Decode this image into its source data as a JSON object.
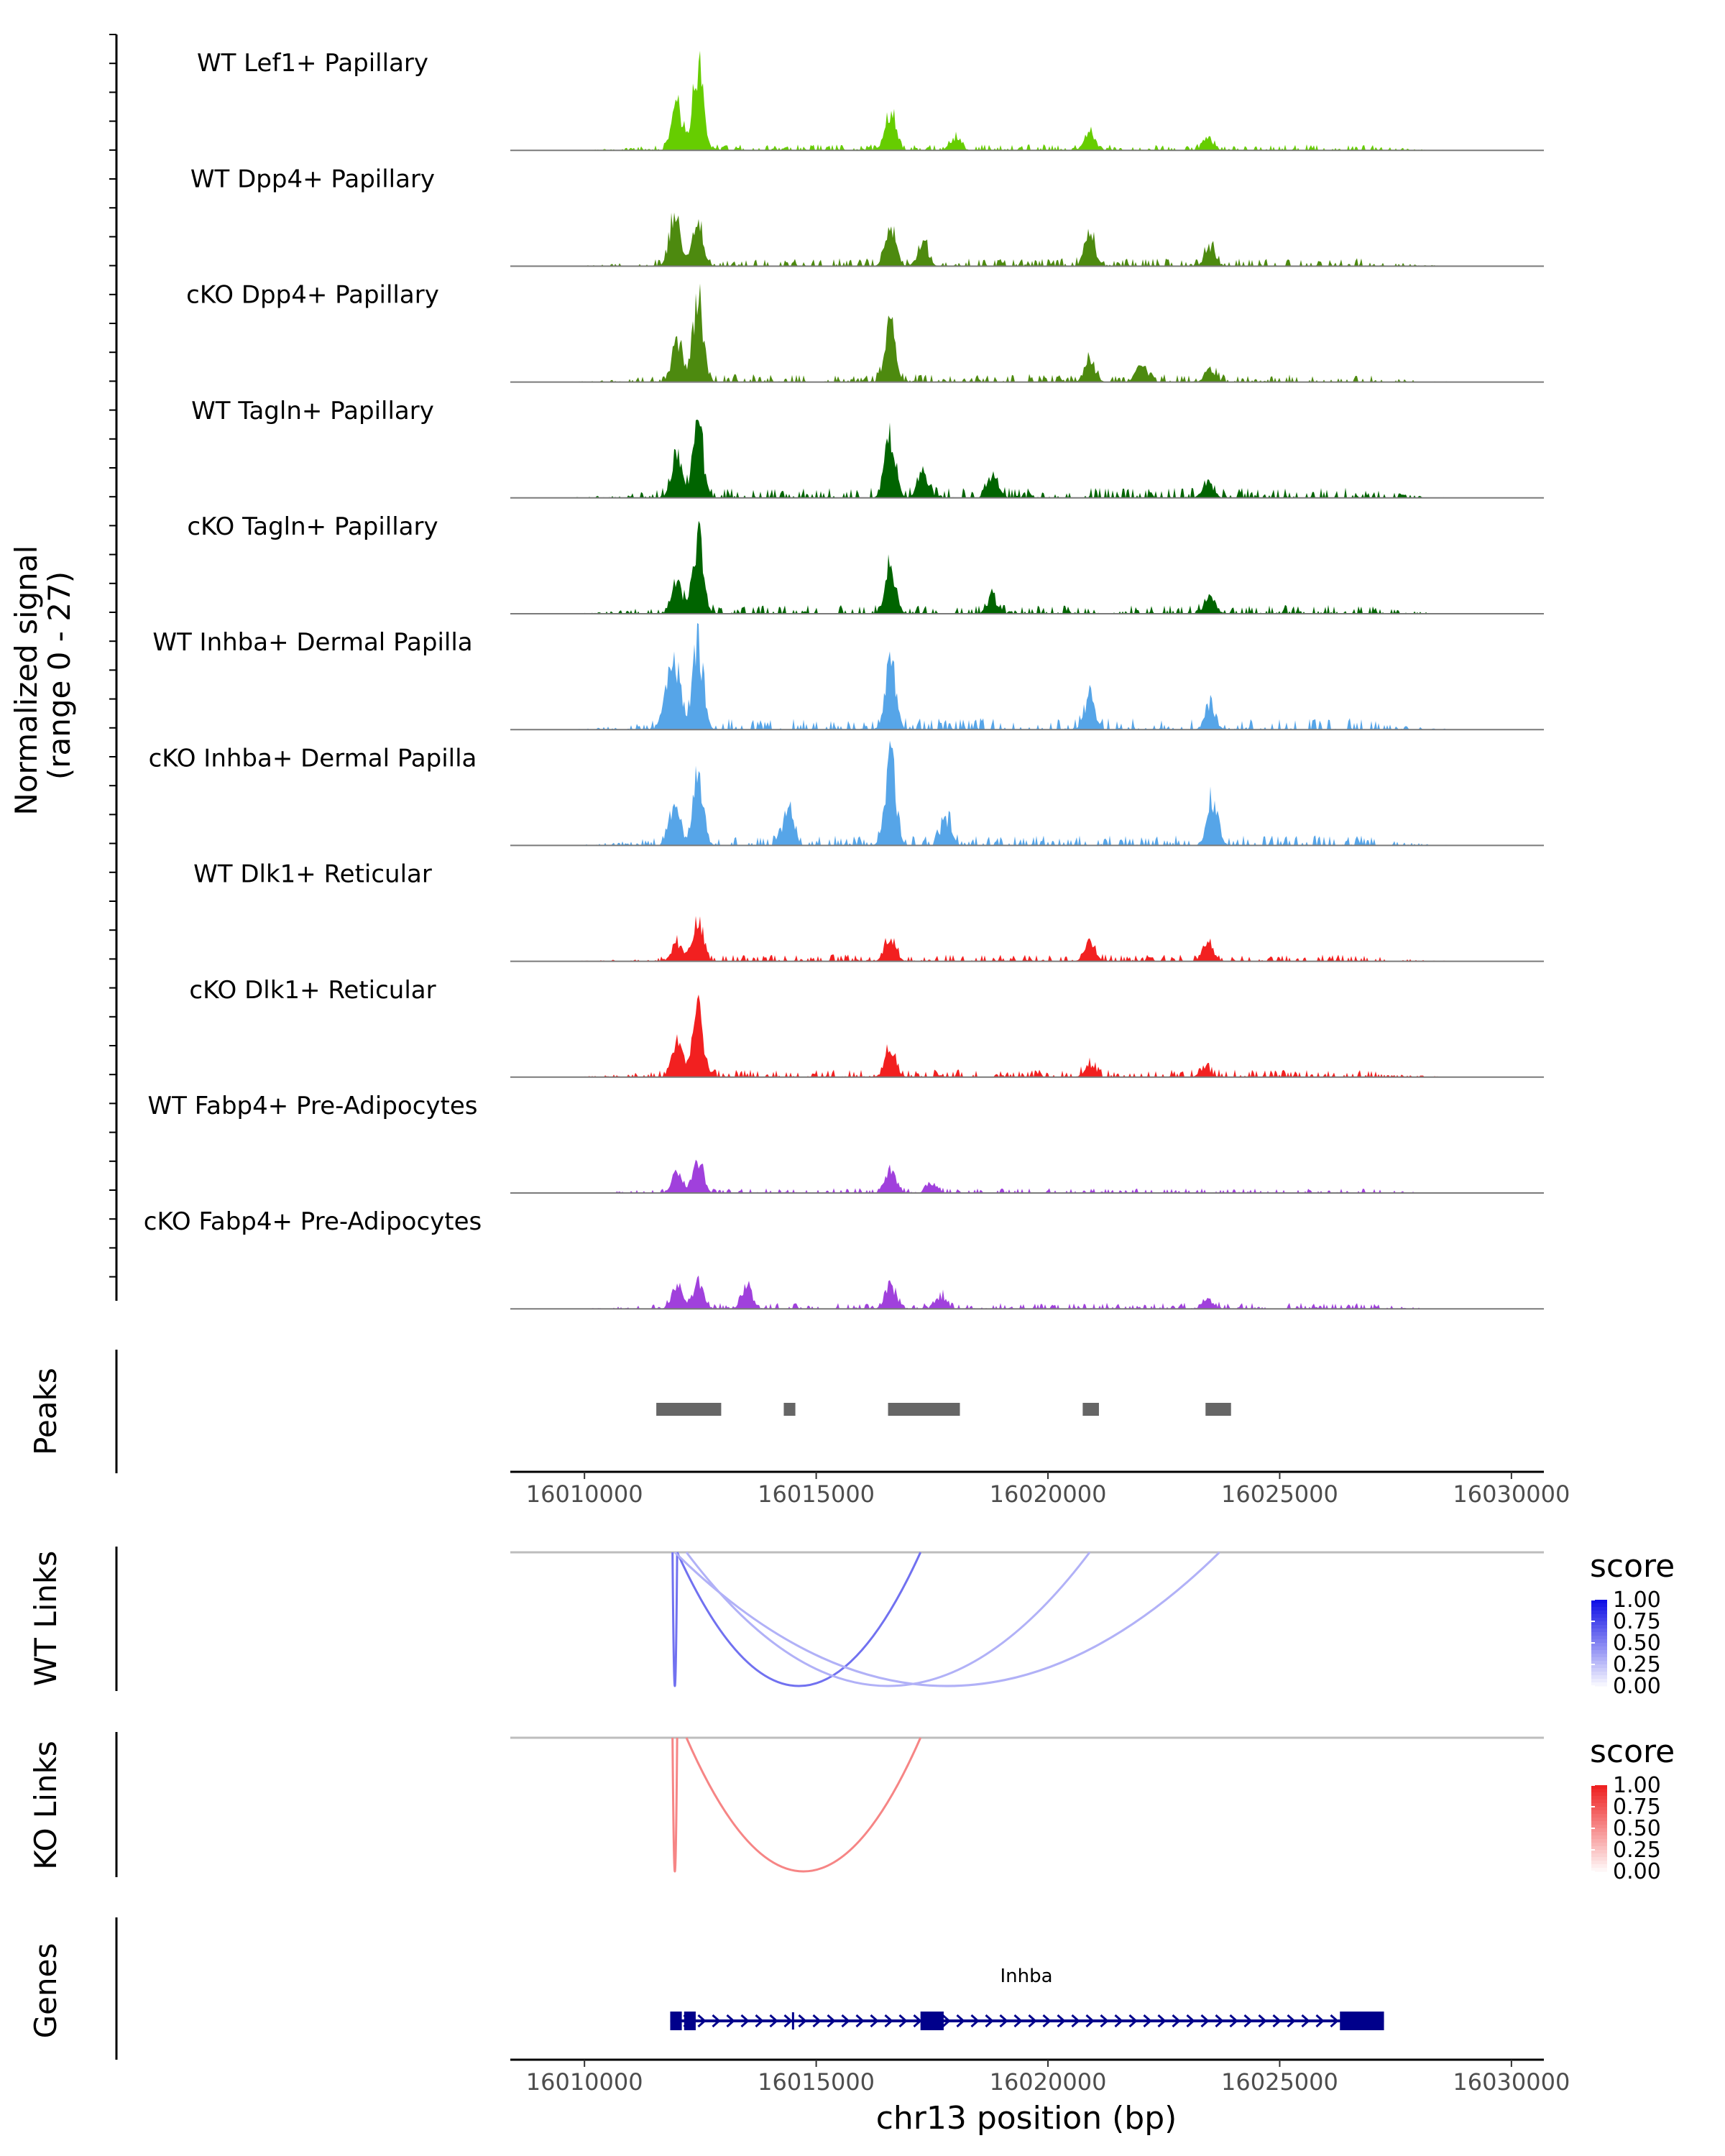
{
  "chart_data": {
    "type": "area",
    "region": "chr13:16008400-16030700",
    "xlim": [
      16008400,
      16030700
    ],
    "x_ticks": [
      16010000,
      16015000,
      16020000,
      16025000,
      16030000
    ],
    "x_tick_labels": [
      "16010000",
      "16015000",
      "16020000",
      "16025000",
      "16030000"
    ],
    "xlabel": "chr13 position (bp)",
    "coverage": {
      "ylabel": "Normalized signal\n(range 0 - 27)",
      "ylabel_lines": [
        "Normalized signal",
        "(range 0 - 27)"
      ],
      "ylim": [
        0,
        27
      ],
      "tracks": [
        {
          "name": "WT Lef1+ Papillary",
          "color": "#66cd00",
          "seed": 11,
          "level": 0.45,
          "peaks": [
            [
              16012000,
              14
            ],
            [
              16012450,
              27
            ],
            [
              16016600,
              12
            ],
            [
              16018000,
              4
            ],
            [
              16020900,
              6
            ],
            [
              16023450,
              4
            ]
          ]
        },
        {
          "name": "WT Dpp4+ Papillary",
          "color": "#4d8a0f",
          "seed": 23,
          "level": 0.6,
          "peaks": [
            [
              16011950,
              16
            ],
            [
              16012450,
              14
            ],
            [
              16016600,
              12
            ],
            [
              16017300,
              7
            ],
            [
              16020900,
              10
            ],
            [
              16023500,
              6
            ]
          ]
        },
        {
          "name": "cKO Dpp4+ Papillary",
          "color": "#4d8a0f",
          "seed": 37,
          "level": 0.6,
          "peaks": [
            [
              16012000,
              13
            ],
            [
              16012450,
              25
            ],
            [
              16016600,
              17
            ],
            [
              16020900,
              7
            ],
            [
              16022000,
              6
            ],
            [
              16023500,
              4
            ]
          ]
        },
        {
          "name": "WT Tagln+ Papillary",
          "color": "#006400",
          "seed": 41,
          "level": 0.75,
          "peaks": [
            [
              16012000,
              14
            ],
            [
              16012450,
              22
            ],
            [
              16016600,
              19
            ],
            [
              16017300,
              8
            ],
            [
              16018800,
              7
            ],
            [
              16023450,
              5
            ]
          ]
        },
        {
          "name": "cKO Tagln+ Papillary",
          "color": "#006400",
          "seed": 53,
          "level": 0.65,
          "peaks": [
            [
              16012000,
              10
            ],
            [
              16012450,
              24
            ],
            [
              16016600,
              15
            ],
            [
              16018800,
              5
            ],
            [
              16023500,
              6
            ]
          ]
        },
        {
          "name": "WT Inhba+ Dermal Papilla",
          "color": "#56a5e8",
          "seed": 67,
          "level": 0.85,
          "peaks": [
            [
              16011800,
              12
            ],
            [
              16012000,
              17
            ],
            [
              16012450,
              27
            ],
            [
              16016600,
              22
            ],
            [
              16020900,
              10
            ],
            [
              16023500,
              7
            ]
          ]
        },
        {
          "name": "cKO Inhba+ Dermal Papilla",
          "color": "#56a5e8",
          "seed": 79,
          "level": 0.75,
          "peaks": [
            [
              16011950,
              14
            ],
            [
              16012450,
              22
            ],
            [
              16014400,
              12
            ],
            [
              16016600,
              27
            ],
            [
              16017800,
              8
            ],
            [
              16023550,
              14
            ]
          ]
        },
        {
          "name": "WT Dlk1+ Reticular",
          "color": "#f22020",
          "seed": 83,
          "level": 0.5,
          "peaks": [
            [
              16012000,
              6
            ],
            [
              16012450,
              14
            ],
            [
              16016600,
              8
            ],
            [
              16020900,
              6
            ],
            [
              16023450,
              6
            ]
          ]
        },
        {
          "name": "cKO Dlk1+ Reticular",
          "color": "#f22020",
          "seed": 97,
          "level": 0.55,
          "peaks": [
            [
              16012000,
              11
            ],
            [
              16012450,
              21
            ],
            [
              16016600,
              9
            ],
            [
              16020900,
              4
            ],
            [
              16023400,
              3
            ]
          ]
        },
        {
          "name": "WT Fabp4+ Pre-Adipocytes",
          "color": "#a040dc",
          "seed": 101,
          "level": 0.35,
          "peaks": [
            [
              16012000,
              6
            ],
            [
              16012450,
              10
            ],
            [
              16016600,
              8
            ],
            [
              16017500,
              3
            ]
          ]
        },
        {
          "name": "cKO Fabp4+ Pre-Adipocytes",
          "color": "#a040dc",
          "seed": 113,
          "level": 0.45,
          "peaks": [
            [
              16012000,
              7
            ],
            [
              16012450,
              8
            ],
            [
              16013500,
              7
            ],
            [
              16016600,
              8
            ],
            [
              16017700,
              4
            ],
            [
              16023450,
              3
            ]
          ]
        }
      ]
    },
    "peaks": {
      "label": "Peaks",
      "ranges": [
        [
          16011550,
          16012950
        ],
        [
          16014300,
          16014550
        ],
        [
          16016550,
          16018100
        ],
        [
          16020750,
          16021100
        ],
        [
          16023400,
          16023950
        ]
      ]
    },
    "links": [
      {
        "label": "WT Links",
        "legend_title": "score",
        "color_high": "#1010e6",
        "color_low": "#ffffff",
        "arcs": [
          {
            "start": 16011900,
            "end": 16012000,
            "score": 0.55
          },
          {
            "start": 16012000,
            "end": 16017250,
            "score": 0.55
          },
          {
            "start": 16012200,
            "end": 16020900,
            "score": 0.25
          },
          {
            "start": 16011950,
            "end": 16023700,
            "score": 0.25
          }
        ]
      },
      {
        "label": "KO Links",
        "legend_title": "score",
        "color_high": "#ee2222",
        "color_low": "#ffffff",
        "arcs": [
          {
            "start": 16011900,
            "end": 16012000,
            "score": 0.5
          },
          {
            "start": 16012200,
            "end": 16017250,
            "score": 0.5
          }
        ]
      }
    ],
    "legend_ticks": [
      "1.00",
      "0.75",
      "0.50",
      "0.25",
      "0.00"
    ],
    "legend_values": [
      1.0,
      0.75,
      0.5,
      0.25,
      0.0
    ],
    "genes": {
      "label": "Genes",
      "gene_name": "Inhba",
      "color": "#00008b",
      "start": 16011850,
      "end": 16027250,
      "strand": "+",
      "exons": [
        [
          16011850,
          16012100
        ],
        [
          16012150,
          16012400
        ],
        [
          16017250,
          16017750
        ],
        [
          16026300,
          16027250
        ]
      ],
      "intron_marks": [
        16014500
      ]
    }
  }
}
